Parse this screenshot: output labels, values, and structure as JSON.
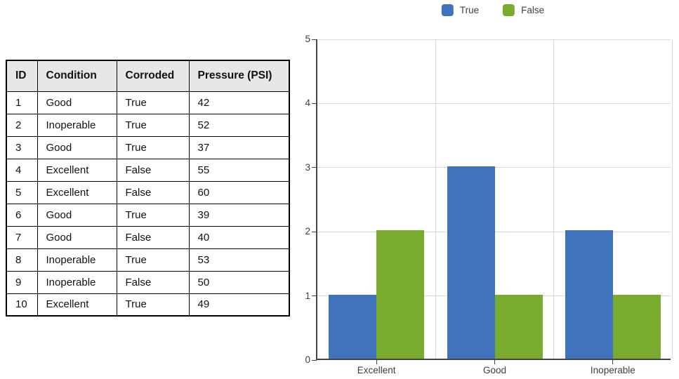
{
  "table": {
    "columns": [
      "ID",
      "Condition",
      "Corroded",
      "Pressure (PSI)"
    ],
    "rows": [
      [
        "1",
        "Good",
        "True",
        "42"
      ],
      [
        "2",
        "Inoperable",
        "True",
        "52"
      ],
      [
        "3",
        "Good",
        "True",
        "37"
      ],
      [
        "4",
        "Excellent",
        "False",
        "55"
      ],
      [
        "5",
        "Excellent",
        "False",
        "60"
      ],
      [
        "6",
        "Good",
        "True",
        "39"
      ],
      [
        "7",
        "Good",
        "False",
        "40"
      ],
      [
        "8",
        "Inoperable",
        "True",
        "53"
      ],
      [
        "9",
        "Inoperable",
        "False",
        "50"
      ],
      [
        "10",
        "Excellent",
        "True",
        "49"
      ]
    ]
  },
  "chart_data": {
    "type": "bar",
    "title": "",
    "xlabel": "",
    "ylabel": "",
    "categories": [
      "Excellent",
      "Good",
      "Inoperable"
    ],
    "series": [
      {
        "name": "True",
        "color": "#4173bd",
        "values": [
          1,
          3,
          2
        ]
      },
      {
        "name": "False",
        "color": "#79ab2f",
        "values": [
          2,
          1,
          1
        ]
      }
    ],
    "ylim": [
      0,
      5
    ],
    "yticks": [
      0,
      1,
      2,
      3,
      4,
      5
    ],
    "grid": true,
    "legend_position": "top"
  }
}
